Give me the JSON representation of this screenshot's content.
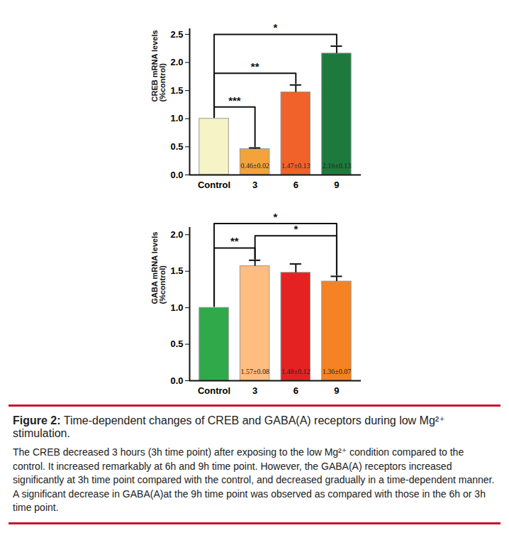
{
  "chart_data": [
    {
      "type": "bar",
      "categories": [
        "Control",
        "3",
        "6",
        "9"
      ],
      "values": [
        1.0,
        0.46,
        1.47,
        2.16
      ],
      "errors": [
        null,
        0.02,
        0.13,
        0.13
      ],
      "value_labels": [
        null,
        "0.46±0.02",
        "1.47±0.13",
        "2.16±0.13"
      ],
      "data_labels": true,
      "colors": [
        "#f6f4c6",
        "#f2a33a",
        "#f0622a",
        "#1d7a3c"
      ],
      "ylabel": "CREB mRNA levels\n(%control)",
      "ylim": [
        0,
        2.6
      ],
      "yticks": [
        {
          "value": 0,
          "label": "0.0"
        },
        0.5,
        {
          "value": 1,
          "label": "1.0"
        },
        1.5,
        {
          "value": 2,
          "label": "2.0"
        },
        2.5
      ],
      "annotations": [
        {
          "from": "Control",
          "to": "3",
          "label": "***"
        },
        {
          "from": "Control",
          "to": "6",
          "label": "**"
        },
        {
          "from": "Control",
          "to": "9",
          "label": "*"
        }
      ]
    },
    {
      "type": "bar",
      "categories": [
        "Control",
        "3",
        "6",
        "9"
      ],
      "values": [
        1.0,
        1.57,
        1.48,
        1.36
      ],
      "errors": [
        null,
        0.08,
        0.12,
        0.07
      ],
      "value_labels": [
        null,
        "1.57±0.08",
        "1.48±0.12",
        "1.36±0.07"
      ],
      "data_labels": true,
      "colors": [
        "#2fa94a",
        "#ffbd80",
        "#e52222",
        "#f58223"
      ],
      "ylabel": "GABA mRNA levels\n(%control)",
      "ylim": [
        0,
        2.1
      ],
      "yticks": [
        {
          "value": 0,
          "label": "0.0"
        },
        0.5,
        {
          "value": 1,
          "label": "1.0"
        },
        1.5,
        {
          "value": 2,
          "label": "2.0"
        }
      ],
      "annotations": [
        {
          "from": "Control",
          "to": "3",
          "label": "**"
        },
        {
          "from": "3",
          "to": "9",
          "label": "*"
        },
        {
          "from": "Control",
          "to": "9",
          "label": "*"
        }
      ]
    }
  ],
  "caption": {
    "label": "Figure 2:",
    "title": "Time-dependent changes of CREB and GABA(A) receptors during low Mg²⁺ stimulation.",
    "text": "The CREB decreased 3 hours (3h time point) after exposing to the low Mg²⁺ condition compared to the control. It increased remarkably at 6h and 9h time point. However, the GABA(A) receptors increased significantly at 3h time point compared with the control, and decreased gradually in a time-dependent manner. A significant decrease in GABA(A)at the 9h time point was observed as compared with those in the 6h or 3h time point."
  }
}
